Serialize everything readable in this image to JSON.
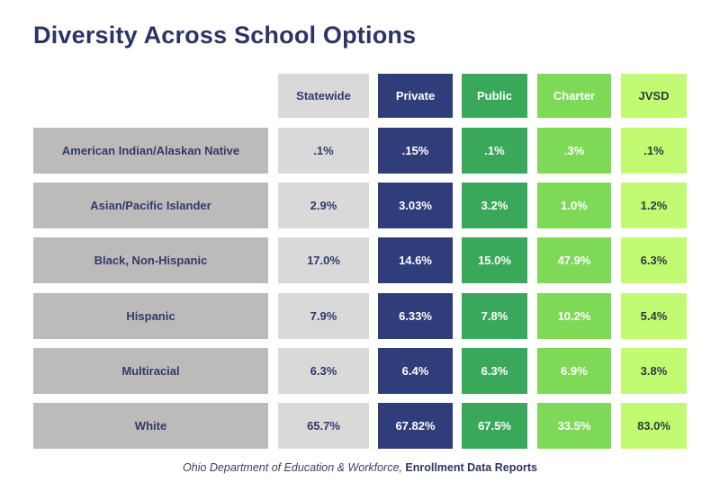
{
  "title": "Diversity Across School Options",
  "chart_data": {
    "type": "table",
    "title": "Diversity Across School Options",
    "columns": [
      {
        "key": "statewide",
        "label": "Statewide",
        "color": "#d9d9d9",
        "text_color": "#33396b"
      },
      {
        "key": "private",
        "label": "Private",
        "color": "#2f3d7b",
        "text_color": "#ffffff"
      },
      {
        "key": "public",
        "label": "Public",
        "color": "#3aa85a",
        "text_color": "#ffffff"
      },
      {
        "key": "charter",
        "label": "Charter",
        "color": "#7ed957",
        "text_color": "#ffffff"
      },
      {
        "key": "jvsd",
        "label": "JVSD",
        "color": "#c2fb71",
        "text_color": "#2e3a3f"
      }
    ],
    "row_label_color": "#bdbbb9",
    "row_label_text_color": "#33396b",
    "rows": [
      {
        "label": "American Indian/Alaskan Native",
        "values": [
          ".1%",
          ".15%",
          ".1%",
          ".3%",
          ".1%"
        ]
      },
      {
        "label": "Asian/Pacific Islander",
        "values": [
          "2.9%",
          "3.03%",
          "3.2%",
          "1.0%",
          "1.2%"
        ]
      },
      {
        "label": "Black, Non-Hispanic",
        "values": [
          "17.0%",
          "14.6%",
          "15.0%",
          "47.9%",
          "6.3%"
        ]
      },
      {
        "label": "Hispanic",
        "values": [
          "7.9%",
          "6.33%",
          "7.8%",
          "10.2%",
          "5.4%"
        ]
      },
      {
        "label": "Multiracial",
        "values": [
          "6.3%",
          "6.4%",
          "6.3%",
          "6.9%",
          "3.8%"
        ]
      },
      {
        "label": "White",
        "values": [
          "65.7%",
          "67.82%",
          "67.5%",
          "33.5%",
          "83.0%"
        ]
      }
    ]
  },
  "source": {
    "organization": "Ohio Department of Education & Workforce,",
    "report": "Enrollment Data Reports"
  }
}
